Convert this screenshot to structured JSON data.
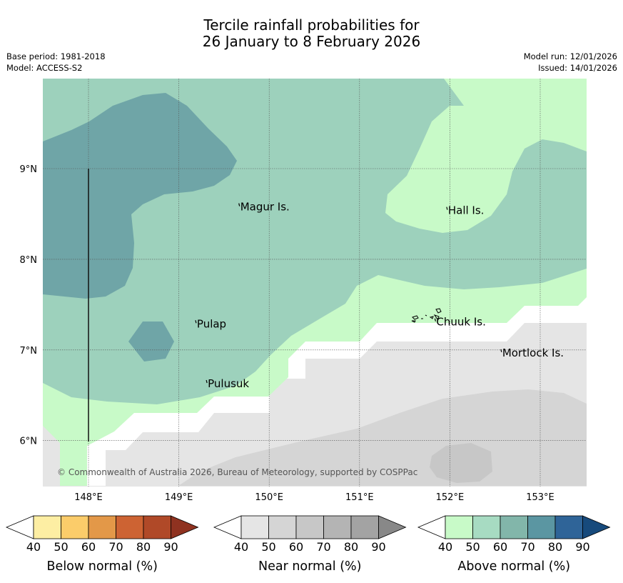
{
  "title": {
    "line1": "Tercile rainfall probabilities for",
    "line2": "26 January to 8 February 2026"
  },
  "meta": {
    "base_period": "Base period: 1981-2018",
    "model": "Model: ACCESS-S2",
    "model_run": "Model run: 12/01/2026",
    "issued": "Issued: 14/01/2026"
  },
  "map": {
    "lon_range": [
      147.5,
      153.5
    ],
    "lat_range": [
      5.5,
      10.0
    ],
    "lon_ticks": [
      {
        "value": 148,
        "label": "148°E"
      },
      {
        "value": 149,
        "label": "149°E"
      },
      {
        "value": 150,
        "label": "150°E"
      },
      {
        "value": 151,
        "label": "151°E"
      },
      {
        "value": 152,
        "label": "152°E"
      },
      {
        "value": 153,
        "label": "153°E"
      }
    ],
    "lat_ticks": [
      {
        "value": 9,
        "label": "9°N"
      },
      {
        "value": 8,
        "label": "8°N"
      },
      {
        "value": 7,
        "label": "7°N"
      },
      {
        "value": 6,
        "label": "6°N"
      }
    ],
    "places": [
      {
        "name": "Magur Is.",
        "lon": 149.68,
        "lat": 8.57
      },
      {
        "name": "Hall Is.",
        "lon": 151.98,
        "lat": 8.53
      },
      {
        "name": "Pulap",
        "lon": 149.2,
        "lat": 7.28
      },
      {
        "name": "Chuuk Is.",
        "lon": 151.85,
        "lat": 7.3
      },
      {
        "name": "Mortlock Is.",
        "lon": 152.58,
        "lat": 6.96
      },
      {
        "name": "Pulusuk",
        "lon": 149.32,
        "lat": 6.62
      }
    ],
    "copyright": "© Commonwealth of Australia 2026, Bureau of Meteorology, supported by COSPPac",
    "colors": {
      "above_40_50": "#c8fac8",
      "above_50_60": "#9dd1bc",
      "above_60_70": "#6fa5a7",
      "near_40_50": "#e5e5e5",
      "near_50_60": "#d5d5d5",
      "near_60_70": "#c7c7c7",
      "no_signal": "#ffffff"
    }
  },
  "colorbars": [
    {
      "label": "Below normal (%)",
      "ticks": [
        "40",
        "50",
        "60",
        "70",
        "80",
        "90"
      ],
      "colors": [
        "#fdeea3",
        "#fbcc6a",
        "#e39848",
        "#cd6333",
        "#b04928"
      ],
      "extend_color": "#8f3220"
    },
    {
      "label": "Near normal (%)",
      "ticks": [
        "40",
        "50",
        "60",
        "70",
        "80",
        "90"
      ],
      "colors": [
        "#e5e5e5",
        "#d5d5d5",
        "#c7c7c7",
        "#b4b4b4",
        "#a3a3a3"
      ],
      "extend_color": "#888888"
    },
    {
      "label": "Above normal (%)",
      "ticks": [
        "40",
        "50",
        "60",
        "70",
        "80",
        "90"
      ],
      "colors": [
        "#c8fac8",
        "#a7dbc2",
        "#82b6aa",
        "#5b96a2",
        "#2f6498"
      ],
      "extend_color": "#174a7c"
    }
  ]
}
